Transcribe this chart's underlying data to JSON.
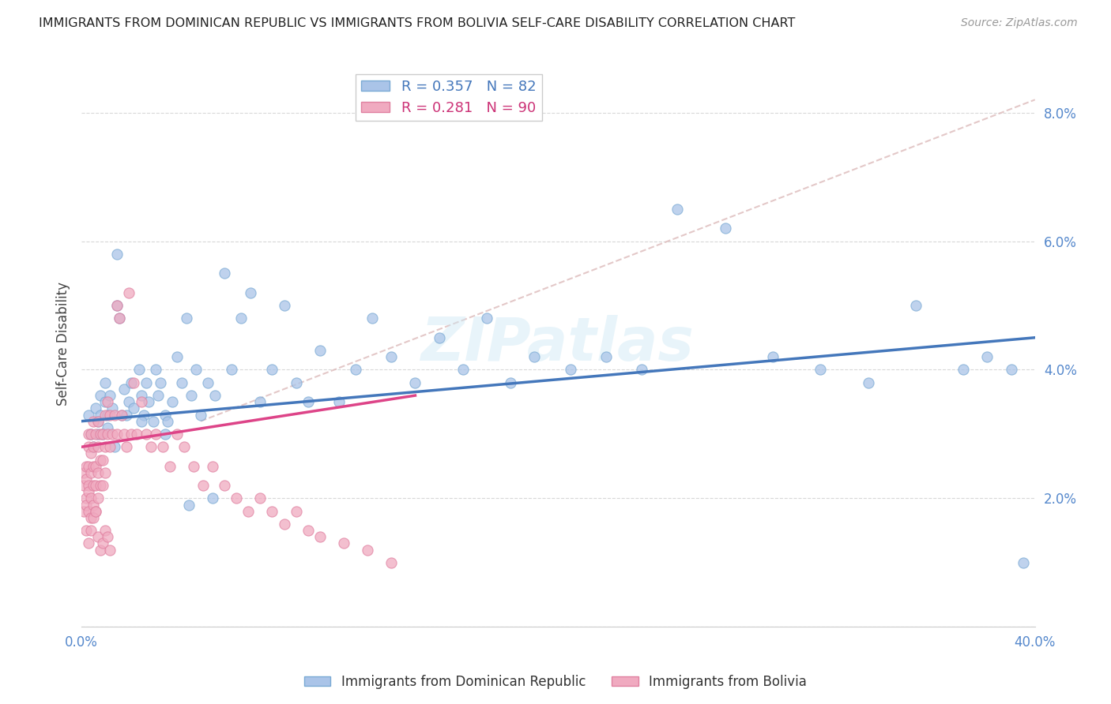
{
  "title": "IMMIGRANTS FROM DOMINICAN REPUBLIC VS IMMIGRANTS FROM BOLIVIA SELF-CARE DISABILITY CORRELATION CHART",
  "source": "Source: ZipAtlas.com",
  "ylabel": "Self-Care Disability",
  "xlim": [
    0.0,
    0.4
  ],
  "ylim": [
    0.0,
    0.088
  ],
  "xticks": [
    0.0,
    0.05,
    0.1,
    0.15,
    0.2,
    0.25,
    0.3,
    0.35,
    0.4
  ],
  "xtick_labels": [
    "0.0%",
    "",
    "",
    "",
    "",
    "",
    "",
    "",
    "40.0%"
  ],
  "yticks": [
    0.0,
    0.02,
    0.04,
    0.06,
    0.08
  ],
  "ytick_labels": [
    "",
    "2.0%",
    "4.0%",
    "6.0%",
    "8.0%"
  ],
  "background_color": "#ffffff",
  "grid_color": "#d8d8d8",
  "series_dr": {
    "name": "Immigrants from Dominican Republic",
    "R": 0.357,
    "N": 82,
    "color": "#aac4e8",
    "edge_color": "#7aaad4",
    "line_color": "#4477bb",
    "x": [
      0.003,
      0.004,
      0.005,
      0.006,
      0.007,
      0.007,
      0.008,
      0.008,
      0.009,
      0.01,
      0.01,
      0.011,
      0.011,
      0.012,
      0.013,
      0.014,
      0.015,
      0.016,
      0.017,
      0.018,
      0.019,
      0.02,
      0.021,
      0.022,
      0.024,
      0.025,
      0.026,
      0.027,
      0.028,
      0.03,
      0.031,
      0.032,
      0.033,
      0.035,
      0.036,
      0.038,
      0.04,
      0.042,
      0.044,
      0.046,
      0.048,
      0.05,
      0.053,
      0.056,
      0.06,
      0.063,
      0.067,
      0.071,
      0.075,
      0.08,
      0.085,
      0.09,
      0.095,
      0.1,
      0.108,
      0.115,
      0.122,
      0.13,
      0.14,
      0.15,
      0.16,
      0.17,
      0.18,
      0.19,
      0.205,
      0.22,
      0.235,
      0.25,
      0.27,
      0.29,
      0.31,
      0.33,
      0.35,
      0.37,
      0.38,
      0.39,
      0.395,
      0.015,
      0.025,
      0.035,
      0.045,
      0.055
    ],
    "y": [
      0.033,
      0.03,
      0.028,
      0.034,
      0.03,
      0.032,
      0.033,
      0.036,
      0.03,
      0.035,
      0.038,
      0.033,
      0.031,
      0.036,
      0.034,
      0.028,
      0.05,
      0.048,
      0.033,
      0.037,
      0.033,
      0.035,
      0.038,
      0.034,
      0.04,
      0.036,
      0.033,
      0.038,
      0.035,
      0.032,
      0.04,
      0.036,
      0.038,
      0.033,
      0.032,
      0.035,
      0.042,
      0.038,
      0.048,
      0.036,
      0.04,
      0.033,
      0.038,
      0.036,
      0.055,
      0.04,
      0.048,
      0.052,
      0.035,
      0.04,
      0.05,
      0.038,
      0.035,
      0.043,
      0.035,
      0.04,
      0.048,
      0.042,
      0.038,
      0.045,
      0.04,
      0.048,
      0.038,
      0.042,
      0.04,
      0.042,
      0.04,
      0.065,
      0.062,
      0.042,
      0.04,
      0.038,
      0.05,
      0.04,
      0.042,
      0.04,
      0.01,
      0.058,
      0.032,
      0.03,
      0.019,
      0.02
    ]
  },
  "series_bo": {
    "name": "Immigrants from Bolivia",
    "R": 0.281,
    "N": 90,
    "color": "#f0aac0",
    "edge_color": "#e080a0",
    "line_color": "#dd4488",
    "x": [
      0.001,
      0.001,
      0.001,
      0.002,
      0.002,
      0.002,
      0.002,
      0.002,
      0.003,
      0.003,
      0.003,
      0.003,
      0.003,
      0.003,
      0.004,
      0.004,
      0.004,
      0.004,
      0.004,
      0.005,
      0.005,
      0.005,
      0.005,
      0.005,
      0.006,
      0.006,
      0.006,
      0.006,
      0.007,
      0.007,
      0.007,
      0.007,
      0.008,
      0.008,
      0.008,
      0.009,
      0.009,
      0.009,
      0.01,
      0.01,
      0.01,
      0.011,
      0.011,
      0.012,
      0.012,
      0.013,
      0.014,
      0.015,
      0.015,
      0.016,
      0.017,
      0.018,
      0.019,
      0.02,
      0.021,
      0.022,
      0.023,
      0.025,
      0.027,
      0.029,
      0.031,
      0.034,
      0.037,
      0.04,
      0.043,
      0.047,
      0.051,
      0.055,
      0.06,
      0.065,
      0.07,
      0.075,
      0.08,
      0.085,
      0.09,
      0.095,
      0.1,
      0.11,
      0.12,
      0.13,
      0.003,
      0.004,
      0.005,
      0.006,
      0.007,
      0.008,
      0.009,
      0.01,
      0.011,
      0.012
    ],
    "y": [
      0.022,
      0.018,
      0.024,
      0.025,
      0.02,
      0.015,
      0.023,
      0.019,
      0.03,
      0.022,
      0.025,
      0.018,
      0.028,
      0.021,
      0.027,
      0.024,
      0.02,
      0.03,
      0.017,
      0.032,
      0.025,
      0.022,
      0.028,
      0.019,
      0.03,
      0.025,
      0.022,
      0.018,
      0.028,
      0.032,
      0.024,
      0.02,
      0.03,
      0.026,
      0.022,
      0.03,
      0.026,
      0.022,
      0.033,
      0.028,
      0.024,
      0.035,
      0.03,
      0.033,
      0.028,
      0.03,
      0.033,
      0.05,
      0.03,
      0.048,
      0.033,
      0.03,
      0.028,
      0.052,
      0.03,
      0.038,
      0.03,
      0.035,
      0.03,
      0.028,
      0.03,
      0.028,
      0.025,
      0.03,
      0.028,
      0.025,
      0.022,
      0.025,
      0.022,
      0.02,
      0.018,
      0.02,
      0.018,
      0.016,
      0.018,
      0.015,
      0.014,
      0.013,
      0.012,
      0.01,
      0.013,
      0.015,
      0.017,
      0.018,
      0.014,
      0.012,
      0.013,
      0.015,
      0.014,
      0.012
    ]
  },
  "dashed_line": {
    "x_start": 0.05,
    "y_start": 0.032,
    "x_end": 0.4,
    "y_end": 0.082,
    "color": "#ddbbbb",
    "style": "--"
  },
  "legend_dr_color": "#aac4e8",
  "legend_bo_color": "#f0aac0",
  "legend_dr_edge": "#7aaad4",
  "legend_bo_edge": "#e080a0",
  "watermark": "ZIPatlas"
}
